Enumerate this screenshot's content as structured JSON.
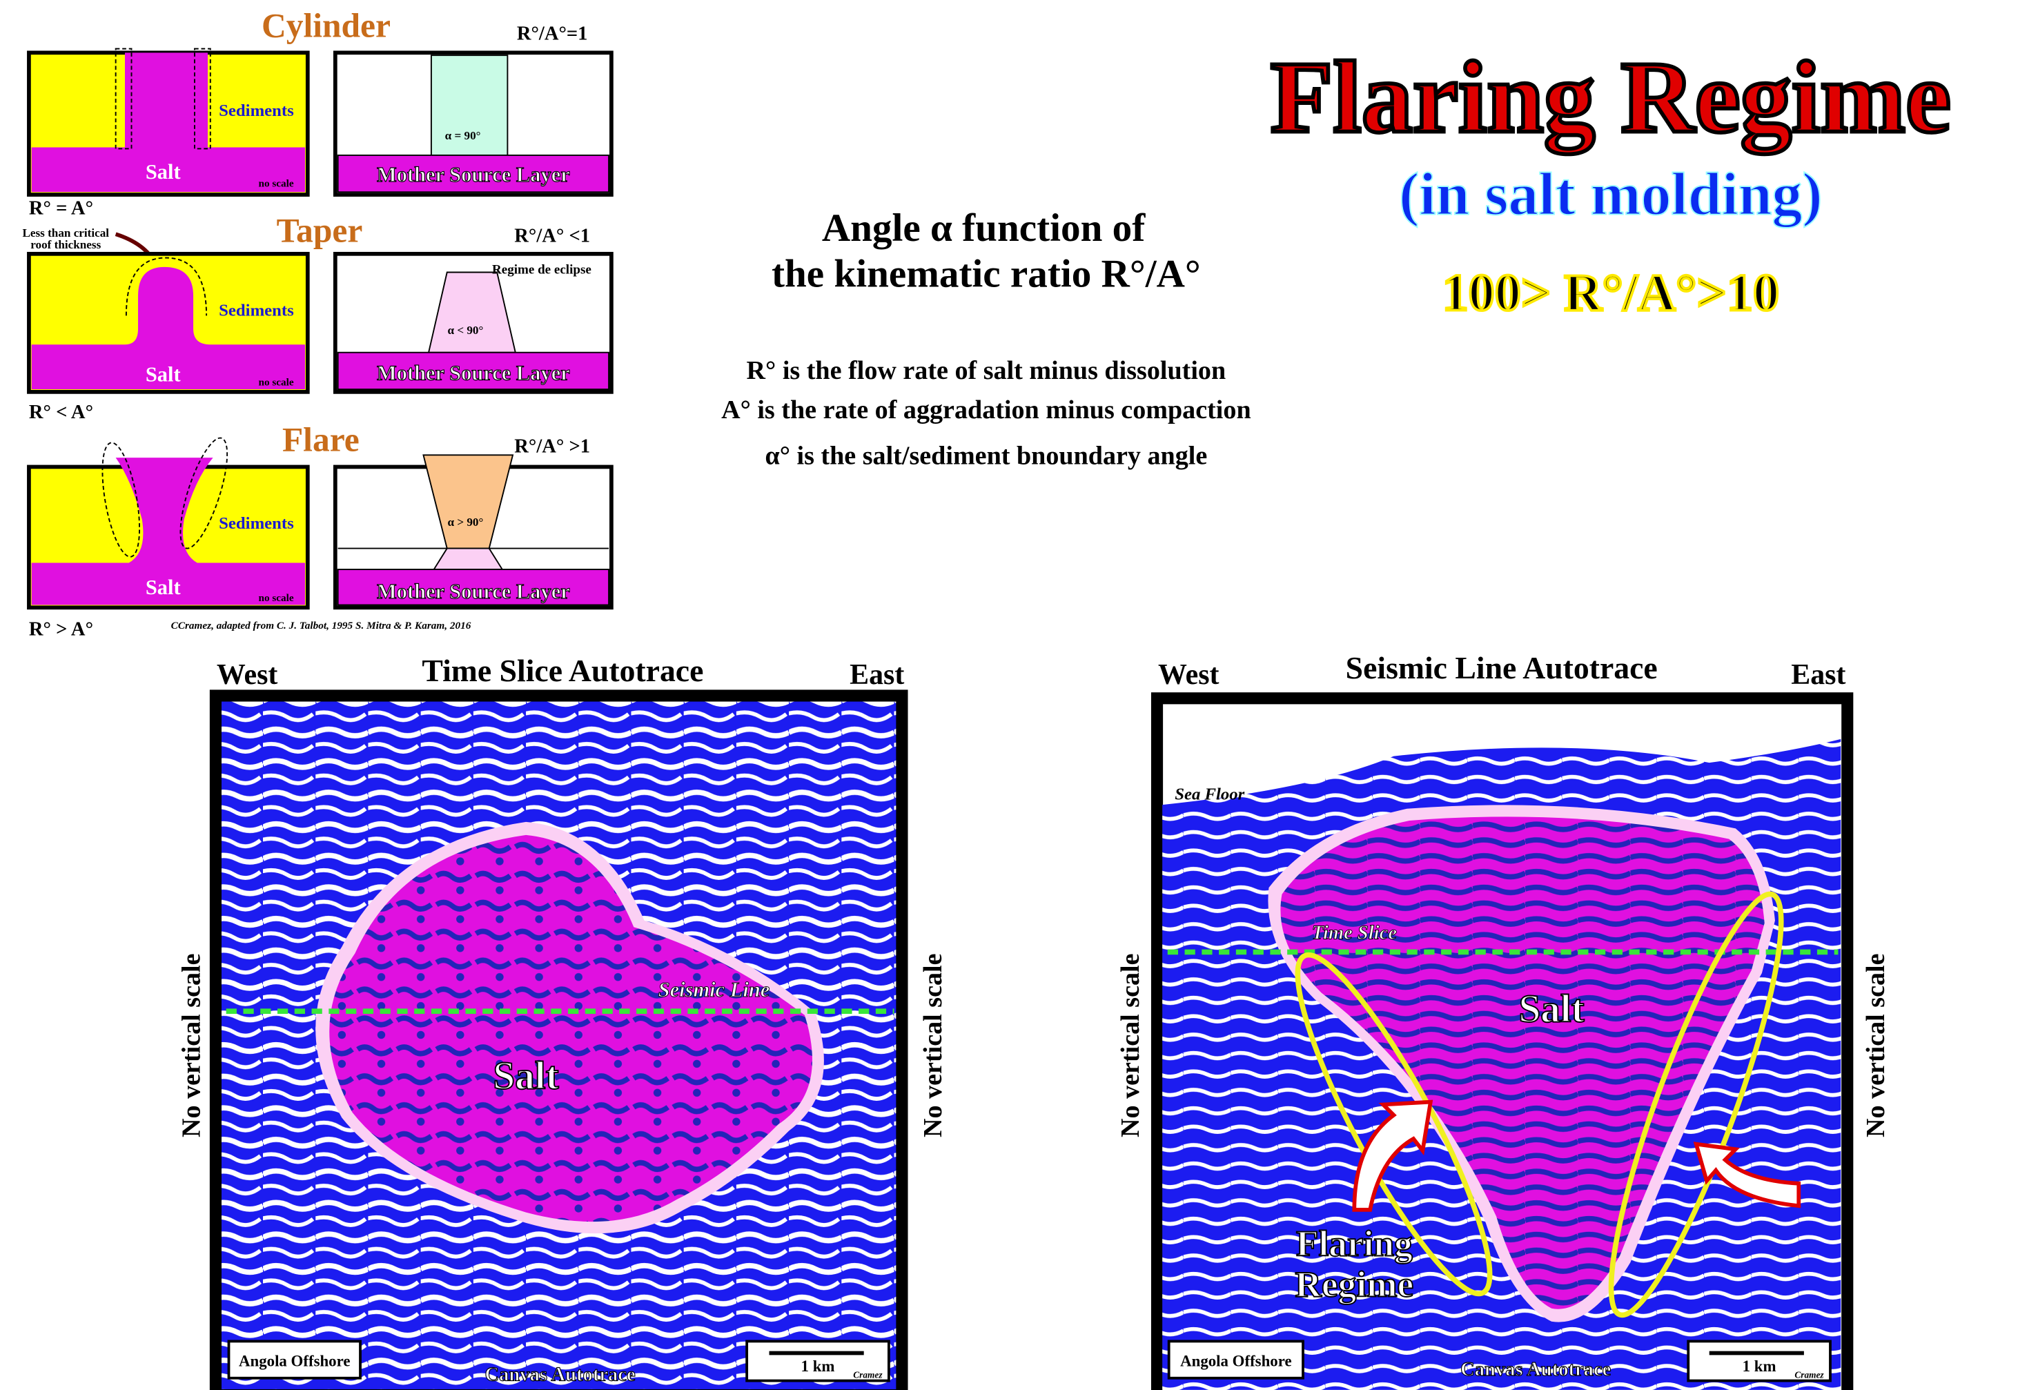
{
  "header": {
    "title": "Flaring Regime",
    "subtitle": "(in salt molding)",
    "ratio": "100> R°/A°>10"
  },
  "explanation": {
    "heading": [
      "Angle α function of",
      "the kinematic ratio R°/A°"
    ],
    "lines": [
      "R° is the flow rate of salt minus dissolution",
      "A° is the rate of aggradation minus compaction",
      "α° is the salt/sediment  bnoundary angle"
    ]
  },
  "models": [
    {
      "name": "Cylinder",
      "ratio": "R°/A°=1",
      "sediments": "Sediments",
      "salt": "Salt",
      "scale": "no scale",
      "angle": "α = 90°",
      "source": "Mother Source Layer",
      "relation": "R° = A°"
    },
    {
      "name": "Taper",
      "ratio": "R°/A° <1",
      "note": [
        "Less than critical",
        "roof thickness"
      ],
      "regime": "Regime de eclipse",
      "sediments": "Sediments",
      "salt": "Salt",
      "scale": "no scale",
      "angle": "α < 90°",
      "source": "Mother Source Layer",
      "relation": "R° < A°"
    },
    {
      "name": "Flare",
      "ratio": "R°/A° >1",
      "sediments": "Sediments",
      "salt": "Salt",
      "scale": "no scale",
      "angle": "α > 90°",
      "source": "Mother Source Layer",
      "relation": "R° > A°"
    }
  ],
  "credit": "CCramez, adapted from C. J. Talbot, 1995 S. Mitra & P. Karam, 2016",
  "panels": [
    {
      "title": "Time Slice Autotrace",
      "west": "West",
      "east": "East",
      "vscale_left": "No vertical scale",
      "vscale_right": "No vertical scale",
      "line_label": "Seismic Line",
      "salt": "Salt",
      "location": "Angola Offshore",
      "scale": "1 km",
      "author": "Cramez",
      "source": "Canvas Autotrace"
    },
    {
      "title": "Seismic Line Autotrace",
      "west": "West",
      "east": "East",
      "vscale_left": "No vertical scale",
      "vscale_right": "No vertical scale",
      "sea_floor": "Sea Floor",
      "line_label": "Time Slice",
      "salt": "Salt",
      "regime": [
        "Flaring",
        "Regime"
      ],
      "location": "Angola Offshore",
      "scale": "1 km",
      "author": "Cramez",
      "source": "Canvas Autotrace"
    }
  ]
}
